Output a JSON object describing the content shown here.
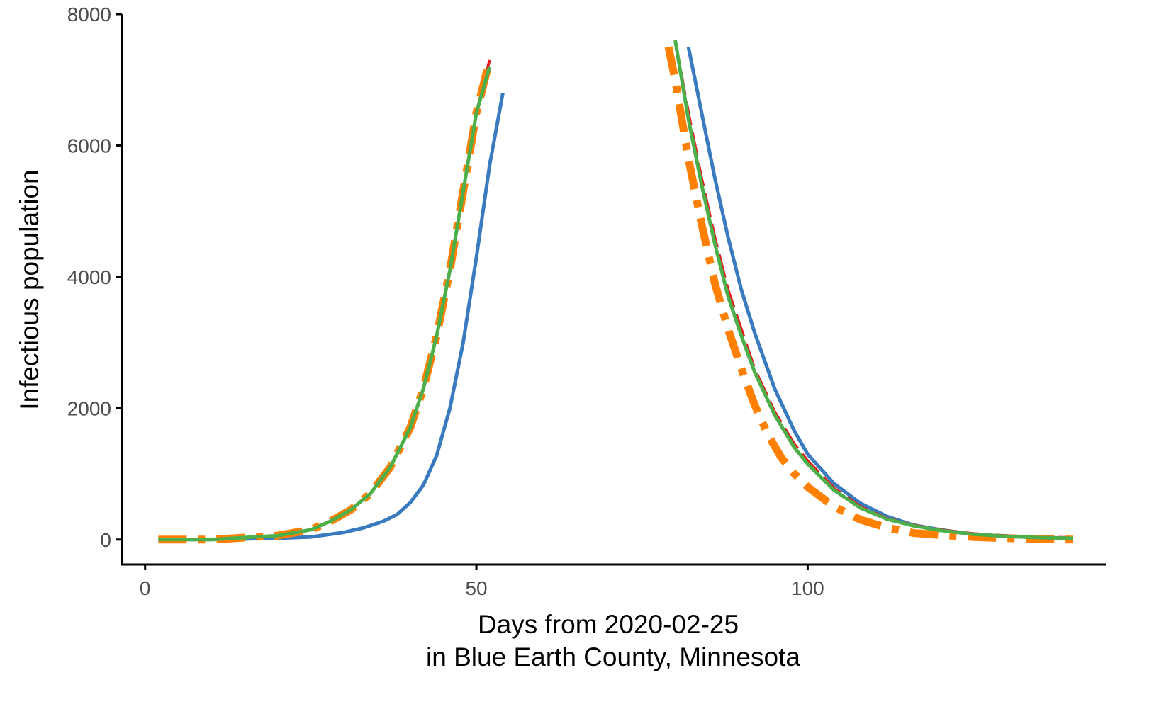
{
  "chart_data": {
    "type": "line",
    "title": "",
    "xlabel_lines": [
      "Days from 2020-02-25",
      "in Blue Earth County, Minnesota"
    ],
    "ylabel": "Infectious population",
    "xlim": [
      -3.5,
      145
    ],
    "ylim": [
      -380,
      8000
    ],
    "x_ticks": [
      0,
      50,
      100
    ],
    "x_tick_labels": [
      "0",
      "50",
      "100"
    ],
    "y_ticks": [
      0,
      2000,
      4000,
      6000,
      8000
    ],
    "y_tick_labels": [
      "0",
      "2000",
      "4000",
      "6000",
      "8000"
    ],
    "grid": false,
    "legend": "none",
    "series": [
      {
        "color": "#3a7bbf",
        "dash": "solid",
        "segments": [
          {
            "x": [
              2,
              10,
              20,
              25,
              30,
              33,
              36,
              38,
              40,
              42,
              44,
              46,
              48,
              50,
              52,
              54
            ],
            "y": [
              0,
              0,
              20,
              40,
              110,
              180,
              280,
              380,
              560,
              830,
              1280,
              2000,
              3000,
              4300,
              5700,
              6800
            ]
          },
          {
            "x": [
              82,
              84,
              86,
              88,
              90,
              92,
              95,
              98,
              100,
              104,
              108,
              112,
              116,
              120,
              125,
              130,
              135,
              140
            ],
            "y": [
              7500,
              6500,
              5500,
              4600,
              3800,
              3150,
              2300,
              1650,
              1300,
              850,
              550,
              350,
              220,
              150,
              80,
              50,
              30,
              20
            ]
          }
        ]
      },
      {
        "color": "#e31a1c",
        "dash": "long-dash",
        "segments": [
          {
            "x": [
              2,
              10,
              20,
              25,
              28,
              31,
              34,
              37,
              40,
              42,
              44,
              46,
              48,
              50,
              52
            ],
            "y": [
              0,
              0,
              60,
              150,
              280,
              450,
              700,
              1100,
              1700,
              2300,
              3100,
              4100,
              5300,
              6500,
              7300
            ]
          },
          {
            "x": [
              80,
              82,
              84,
              86,
              88,
              90,
              92,
              95,
              98,
              100,
              104,
              108,
              112,
              116,
              120,
              125,
              130,
              135,
              140
            ],
            "y": [
              7600,
              6500,
              5500,
              4600,
              3800,
              3200,
              2600,
              1950,
              1450,
              1200,
              780,
              500,
              320,
              220,
              150,
              90,
              60,
              40,
              30
            ]
          }
        ]
      },
      {
        "color": "#ff7f00",
        "dash": "dash-dot",
        "segments": [
          {
            "x": [
              2,
              10,
              20,
              25,
              28,
              31,
              34,
              37,
              40,
              42,
              44,
              46,
              48,
              50,
              52
            ],
            "y": [
              0,
              0,
              60,
              150,
              280,
              450,
              700,
              1100,
              1700,
              2300,
              3100,
              4100,
              5300,
              6500,
              7300
            ]
          },
          {
            "x": [
              79,
              80,
              82,
              84,
              86,
              88,
              90,
              92,
              94,
              96,
              98,
              100,
              104,
              108,
              112,
              116,
              120,
              125,
              130,
              135,
              140
            ],
            "y": [
              7500,
              7000,
              5800,
              4800,
              3900,
              3200,
              2600,
              2050,
              1600,
              1250,
              1000,
              800,
              500,
              300,
              180,
              100,
              70,
              40,
              20,
              10,
              0
            ]
          }
        ]
      },
      {
        "color": "#4daf4a",
        "dash": "solid",
        "segments": [
          {
            "x": [
              2,
              10,
              20,
              25,
              28,
              31,
              34,
              37,
              40,
              42,
              44,
              46,
              48,
              50,
              52
            ],
            "y": [
              0,
              0,
              60,
              150,
              280,
              450,
              700,
              1100,
              1700,
              2300,
              3100,
              4100,
              5300,
              6500,
              7200
            ]
          },
          {
            "x": [
              80,
              82,
              84,
              86,
              88,
              90,
              92,
              95,
              98,
              100,
              104,
              108,
              112,
              116,
              120,
              125,
              130,
              135,
              140
            ],
            "y": [
              7600,
              6400,
              5400,
              4500,
              3700,
              3100,
              2550,
              1900,
              1400,
              1150,
              750,
              480,
              310,
              210,
              140,
              80,
              50,
              30,
              20
            ]
          }
        ]
      }
    ]
  }
}
